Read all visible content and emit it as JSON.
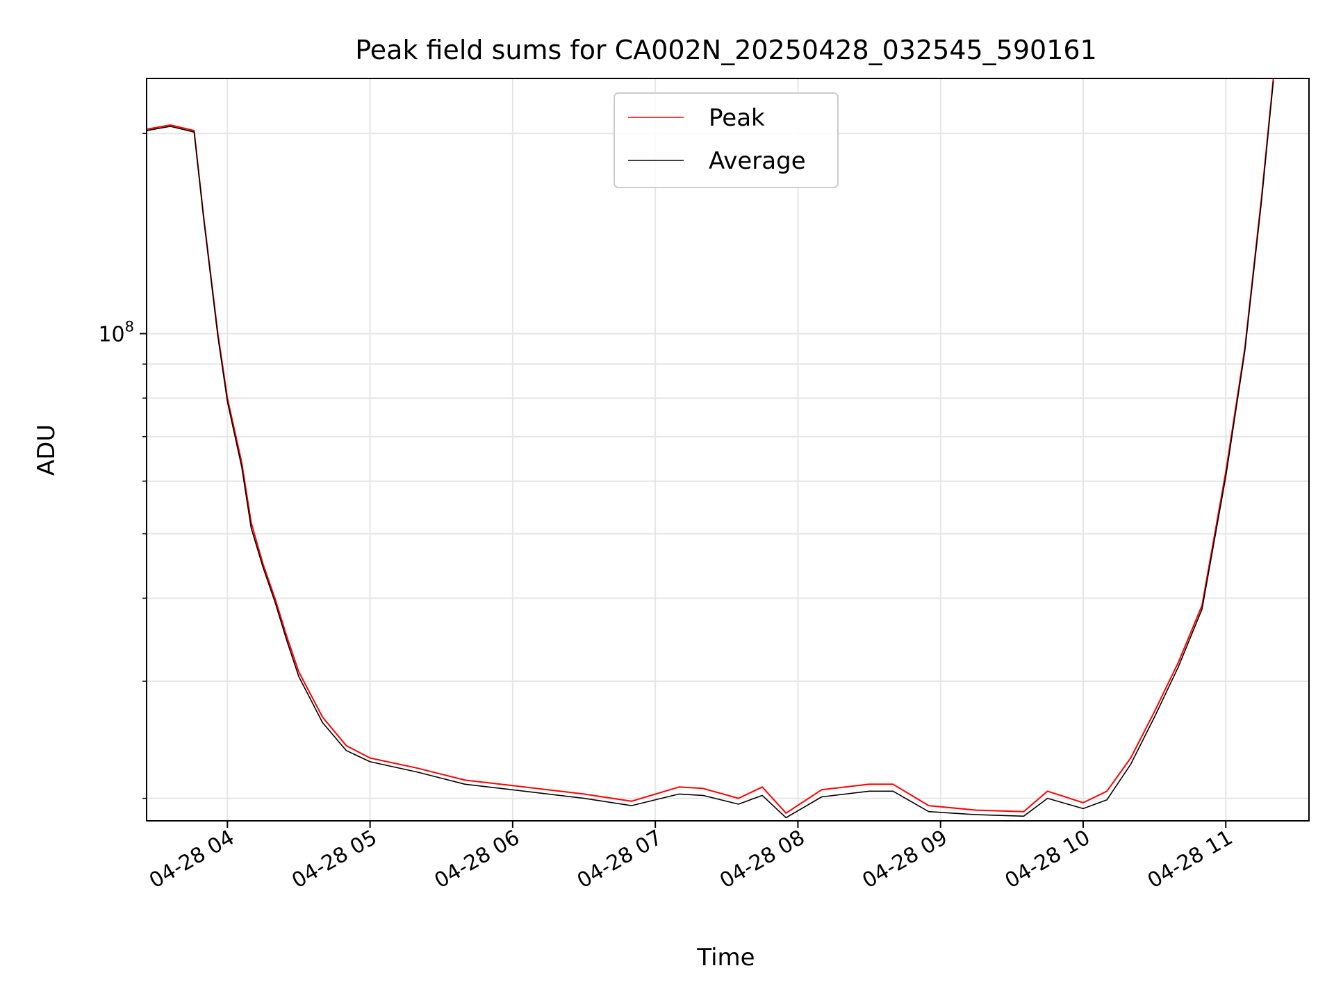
{
  "chart_data": {
    "type": "line",
    "title": "Peak field sums for CA002N_20250428_032545_590161",
    "xlabel": "Time",
    "ylabel": "ADU",
    "yscale": "log",
    "ylim": [
      18500000,
      242000000
    ],
    "xlim": [
      "2025-04-28 03:26",
      "2025-04-28 11:35"
    ],
    "x_ticks": [
      "04-28 04",
      "04-28 05",
      "04-28 06",
      "04-28 07",
      "04-28 08",
      "04-28 09",
      "04-28 10",
      "04-28 11"
    ],
    "x_tick_values": [
      "2025-04-28 04:00",
      "2025-04-28 05:00",
      "2025-04-28 06:00",
      "2025-04-28 07:00",
      "2025-04-28 08:00",
      "2025-04-28 09:00",
      "2025-04-28 10:00",
      "2025-04-28 11:00"
    ],
    "y_ticks": [
      "10^8"
    ],
    "y_tick_values": [
      100000000
    ],
    "grid": true,
    "legend": {
      "placement": "top-center",
      "entries": [
        "Peak",
        "Average"
      ]
    },
    "series": [
      {
        "name": "Peak",
        "color": "#ff0000",
        "x": [
          "2025-04-28 03:26",
          "2025-04-28 03:36",
          "2025-04-28 03:46",
          "2025-04-28 03:50",
          "2025-04-28 03:56",
          "2025-04-28 04:00",
          "2025-04-28 04:06",
          "2025-04-28 04:10",
          "2025-04-28 04:15",
          "2025-04-28 04:20",
          "2025-04-28 04:25",
          "2025-04-28 04:30",
          "2025-04-28 04:40",
          "2025-04-28 04:50",
          "2025-04-28 05:00",
          "2025-04-28 05:20",
          "2025-04-28 05:40",
          "2025-04-28 06:00",
          "2025-04-28 06:30",
          "2025-04-28 06:50",
          "2025-04-28 07:10",
          "2025-04-28 07:20",
          "2025-04-28 07:35",
          "2025-04-28 07:45",
          "2025-04-28 07:55",
          "2025-04-28 08:10",
          "2025-04-28 08:30",
          "2025-04-28 08:40",
          "2025-04-28 08:55",
          "2025-04-28 09:15",
          "2025-04-28 09:35",
          "2025-04-28 09:45",
          "2025-04-28 10:00",
          "2025-04-28 10:10",
          "2025-04-28 10:20",
          "2025-04-28 10:30",
          "2025-04-28 10:40",
          "2025-04-28 10:50",
          "2025-04-28 11:00",
          "2025-04-28 11:08",
          "2025-04-28 11:15",
          "2025-04-28 11:20"
        ],
        "y": [
          203000000,
          206000000,
          202000000,
          150000000,
          100000000,
          80000000,
          64000000,
          52000000,
          45000000,
          40000000,
          35000000,
          31000000,
          26500000,
          24000000,
          23000000,
          22200000,
          21300000,
          20900000,
          20300000,
          19800000,
          20800000,
          20700000,
          20000000,
          20800000,
          19000000,
          20600000,
          21000000,
          21000000,
          19500000,
          19200000,
          19100000,
          20500000,
          19700000,
          20500000,
          23000000,
          27000000,
          32000000,
          39000000,
          62000000,
          95000000,
          160000000,
          242000000
        ]
      },
      {
        "name": "Average",
        "color": "#000000",
        "x": [
          "2025-04-28 03:26",
          "2025-04-28 03:36",
          "2025-04-28 03:46",
          "2025-04-28 03:50",
          "2025-04-28 03:56",
          "2025-04-28 04:00",
          "2025-04-28 04:06",
          "2025-04-28 04:10",
          "2025-04-28 04:15",
          "2025-04-28 04:20",
          "2025-04-28 04:25",
          "2025-04-28 04:30",
          "2025-04-28 04:40",
          "2025-04-28 04:50",
          "2025-04-28 05:00",
          "2025-04-28 05:20",
          "2025-04-28 05:40",
          "2025-04-28 06:00",
          "2025-04-28 06:30",
          "2025-04-28 06:50",
          "2025-04-28 07:10",
          "2025-04-28 07:20",
          "2025-04-28 07:35",
          "2025-04-28 07:45",
          "2025-04-28 07:55",
          "2025-04-28 08:10",
          "2025-04-28 08:30",
          "2025-04-28 08:40",
          "2025-04-28 08:55",
          "2025-04-28 09:15",
          "2025-04-28 09:35",
          "2025-04-28 09:45",
          "2025-04-28 10:00",
          "2025-04-28 10:10",
          "2025-04-28 10:20",
          "2025-04-28 10:30",
          "2025-04-28 10:40",
          "2025-04-28 10:50",
          "2025-04-28 11:00",
          "2025-04-28 11:08",
          "2025-04-28 11:15",
          "2025-04-28 11:20"
        ],
        "y": [
          202000000,
          205000000,
          201000000,
          149000000,
          99000000,
          79000000,
          63000000,
          51000000,
          44500000,
          39500000,
          34500000,
          30500000,
          26000000,
          23600000,
          22700000,
          21900000,
          21000000,
          20600000,
          20000000,
          19500000,
          20300000,
          20200000,
          19600000,
          20200000,
          18700000,
          20100000,
          20500000,
          20500000,
          19100000,
          18900000,
          18800000,
          20000000,
          19300000,
          19900000,
          22500000,
          26500000,
          31500000,
          38500000,
          61000000,
          94000000,
          158000000,
          240000000
        ]
      }
    ]
  }
}
